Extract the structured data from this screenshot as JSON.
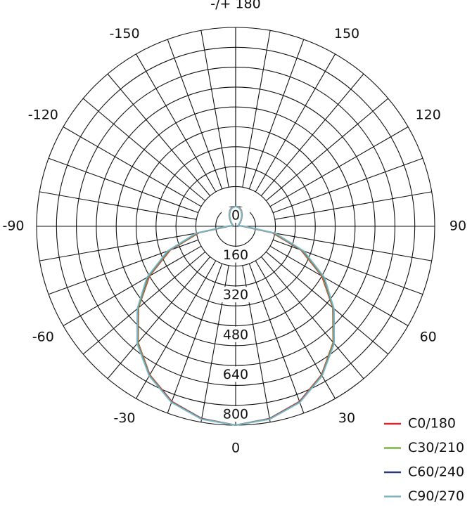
{
  "chart_data": {
    "type": "polar",
    "x": [
      -180,
      -170,
      -160,
      -150,
      -140,
      -130,
      -120,
      -110,
      -100,
      -90,
      -80,
      -70,
      -60,
      -50,
      -40,
      -30,
      -20,
      -10,
      0,
      10,
      20,
      30,
      40,
      50,
      60,
      70,
      80,
      90,
      100,
      110,
      120,
      130,
      140,
      150,
      160,
      170,
      180
    ],
    "series": [
      {
        "name": "C0/180",
        "color": "#d7282f",
        "values": [
          80,
          78,
          68,
          52,
          36,
          24,
          16,
          12,
          14,
          30,
          150,
          280,
          400,
          510,
          610,
          690,
          750,
          785,
          800,
          785,
          750,
          690,
          610,
          510,
          400,
          280,
          150,
          30,
          14,
          12,
          16,
          24,
          36,
          52,
          68,
          78,
          80
        ]
      },
      {
        "name": "C30/210",
        "color": "#7cb342",
        "values": [
          80,
          77,
          67,
          51,
          35,
          24,
          16,
          12,
          14,
          32,
          155,
          285,
          405,
          512,
          612,
          692,
          752,
          786,
          800,
          786,
          752,
          692,
          612,
          512,
          405,
          285,
          155,
          32,
          14,
          12,
          16,
          24,
          35,
          51,
          67,
          77,
          80
        ]
      },
      {
        "name": "C60/240",
        "color": "#2b3a7a",
        "values": [
          80,
          76,
          66,
          50,
          34,
          23,
          15,
          11,
          13,
          34,
          160,
          290,
          410,
          515,
          615,
          694,
          753,
          787,
          800,
          787,
          753,
          694,
          615,
          515,
          410,
          290,
          160,
          34,
          13,
          11,
          15,
          23,
          34,
          50,
          66,
          76,
          80
        ]
      },
      {
        "name": "C90/270",
        "color": "#7fb6c4",
        "values": [
          80,
          76,
          66,
          50,
          34,
          22,
          15,
          11,
          13,
          36,
          162,
          292,
          412,
          516,
          616,
          695,
          754,
          788,
          800,
          788,
          754,
          695,
          616,
          516,
          412,
          292,
          162,
          36,
          13,
          11,
          15,
          22,
          34,
          50,
          66,
          76,
          80
        ]
      }
    ],
    "rlim": [
      0,
      800
    ],
    "rticks": [
      0,
      160,
      320,
      480,
      640,
      800
    ],
    "rminorticks": [
      80,
      240,
      400,
      560,
      720
    ],
    "xticks": [
      -150,
      -120,
      -90,
      -60,
      -30,
      0,
      30,
      60,
      90,
      120,
      150,
      {
        "value": 180,
        "label": "-/+ 180"
      }
    ],
    "grid": true
  }
}
